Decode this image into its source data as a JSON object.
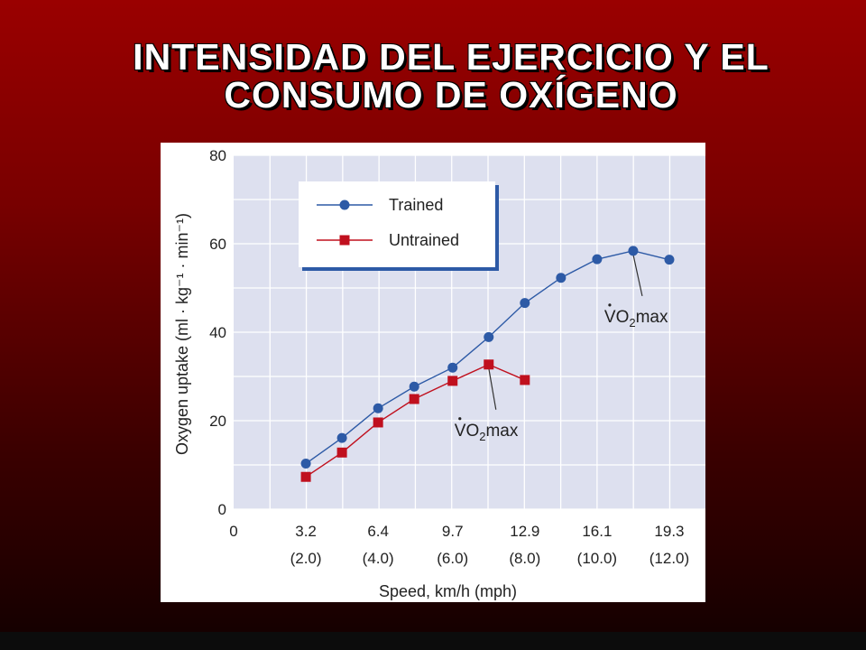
{
  "slide": {
    "title_line1": "INTENSIDAD DEL EJERCICIO Y EL",
    "title_line2": "CONSUMO DE OXÍGENO"
  },
  "chart_data": {
    "type": "line",
    "xlabel": "Speed, km/h (mph)",
    "ylabel": "Oxygen uptake (ml · kg⁻¹ · min⁻¹)",
    "xlim": [
      0,
      20.9
    ],
    "ylim": [
      0,
      80
    ],
    "y_ticks": [
      0,
      20,
      40,
      60,
      80
    ],
    "x_ticks": [
      {
        "value": 0,
        "label": "0",
        "sub": ""
      },
      {
        "value": 3.2,
        "label": "3.2",
        "sub": "(2.0)"
      },
      {
        "value": 6.4,
        "label": "6.4",
        "sub": "(4.0)"
      },
      {
        "value": 9.7,
        "label": "9.7",
        "sub": "(6.0)"
      },
      {
        "value": 12.9,
        "label": "12.9",
        "sub": "(8.0)"
      },
      {
        "value": 16.1,
        "label": "16.1",
        "sub": "(10.0)"
      },
      {
        "value": 19.3,
        "label": "19.3",
        "sub": "(12.0)"
      }
    ],
    "grid": true,
    "legend_position": "top-left",
    "series": [
      {
        "name": "Trained",
        "color": "#2d5aa6",
        "marker": "circle",
        "x": [
          3.2,
          4.8,
          6.4,
          8.0,
          9.7,
          11.3,
          12.9,
          14.5,
          16.1,
          17.7,
          19.3
        ],
        "y": [
          10.3,
          16.1,
          22.8,
          27.7,
          32.0,
          38.9,
          46.6,
          52.3,
          56.5,
          58.4,
          56.4
        ]
      },
      {
        "name": "Untrained",
        "color": "#c0101e",
        "marker": "square",
        "x": [
          3.2,
          4.8,
          6.4,
          8.0,
          9.7,
          11.3,
          12.9
        ],
        "y": [
          7.3,
          12.8,
          19.6,
          24.9,
          29.0,
          32.7,
          29.2
        ]
      }
    ],
    "annotations": [
      {
        "label_pre": "VO",
        "label_sub": "2",
        "label_post": "max",
        "series": "Trained",
        "x": 17.7,
        "y": 58.4
      },
      {
        "label_pre": "VO",
        "label_sub": "2",
        "label_post": "max",
        "series": "Untrained",
        "x": 11.3,
        "y": 32.7
      }
    ]
  }
}
